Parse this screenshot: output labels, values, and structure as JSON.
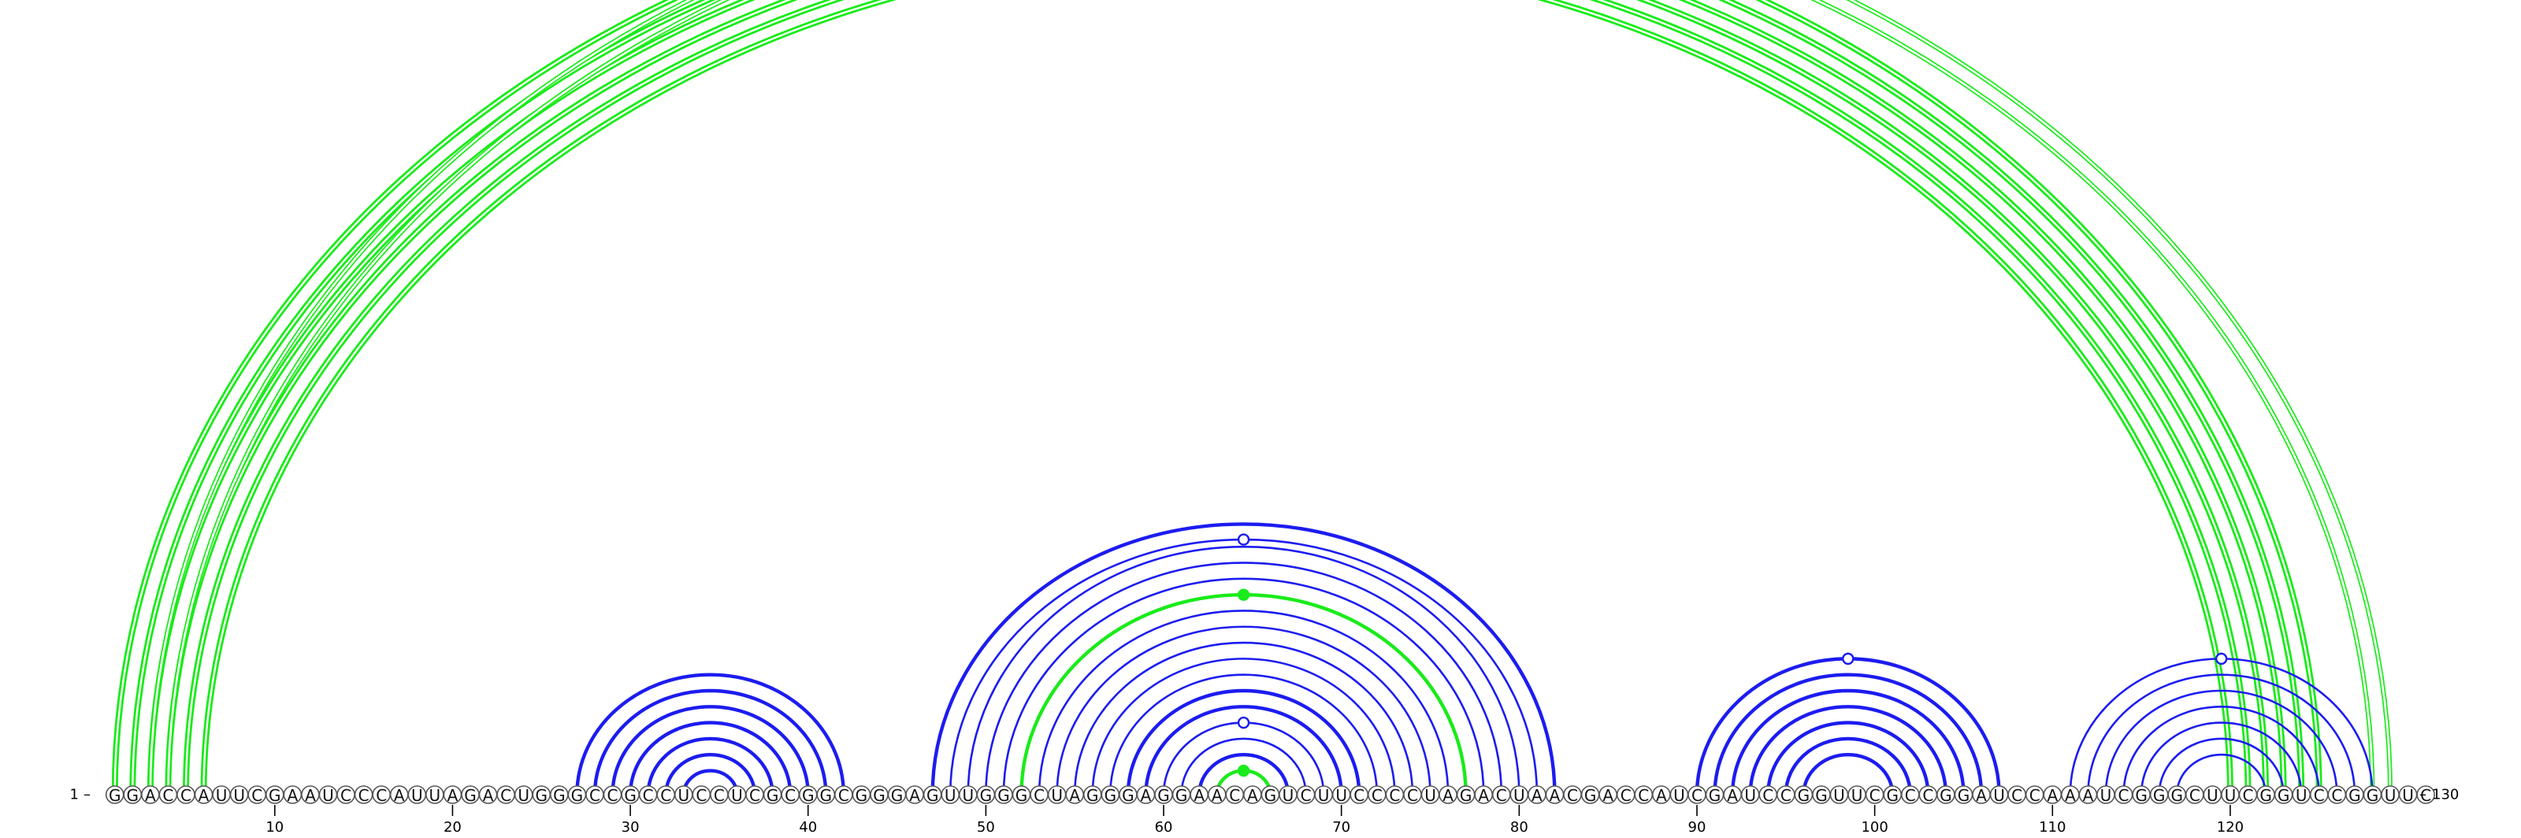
{
  "diagram": {
    "type": "rna-arc-diagram",
    "sequence": "GGACCAUUCGAAUCCCAUUAGACUGGGCCGCCUCCUCGCGGCGGGAGUUGGGCUAGGGAGGAACAGUCUUCCCCUAGACUAACGACCAUCGAUCCGGUUCGCCGGAUCCAAAUCGGGCUUCGGUCCGGUUC",
    "length": 130,
    "start_label": "1",
    "end_label": "130",
    "ticks": [
      "10",
      "20",
      "30",
      "40",
      "50",
      "60",
      "70",
      "80",
      "90",
      "100",
      "110",
      "120"
    ],
    "colors": {
      "blue": "#1c1cf0",
      "green": "#1aeb1a"
    },
    "helices": [
      {
        "color": "green",
        "i": [
          1,
          2,
          3,
          4,
          5,
          6
        ],
        "j": [
          125,
          124,
          123,
          122,
          121,
          120
        ],
        "weight": "bold",
        "double": true
      },
      {
        "color": "green",
        "i": [
          3,
          4
        ],
        "j": [
          129,
          128
        ],
        "weight": "thin",
        "double": true,
        "marker": "open"
      },
      {
        "color": "blue",
        "i": [
          27,
          28,
          29,
          30,
          31,
          32,
          33
        ],
        "j": [
          42,
          41,
          40,
          39,
          38,
          37,
          36
        ],
        "weight": "bold"
      },
      {
        "color": "blue",
        "i": [
          47
        ],
        "j": [
          82
        ],
        "weight": "bold"
      },
      {
        "color": "blue",
        "i": [
          48,
          49,
          50,
          51
        ],
        "j": [
          81,
          80,
          79,
          78
        ],
        "weight": "thin",
        "marker": "open"
      },
      {
        "color": "green",
        "i": [
          52
        ],
        "j": [
          77
        ],
        "weight": "bold",
        "marker": "filled"
      },
      {
        "color": "blue",
        "i": [
          53,
          54,
          55,
          56,
          57
        ],
        "j": [
          76,
          75,
          74,
          73,
          72
        ],
        "weight": "thin"
      },
      {
        "color": "blue",
        "i": [
          58,
          59
        ],
        "j": [
          71,
          70
        ],
        "weight": "bold"
      },
      {
        "color": "blue",
        "i": [
          60,
          61
        ],
        "j": [
          69,
          68
        ],
        "weight": "thin",
        "marker": "open"
      },
      {
        "color": "blue",
        "i": [
          62
        ],
        "j": [
          67
        ],
        "weight": "bold"
      },
      {
        "color": "green",
        "i": [
          63
        ],
        "j": [
          66
        ],
        "weight": "bold",
        "marker": "filled"
      },
      {
        "color": "blue",
        "i": [
          90,
          91,
          92,
          93,
          94,
          95,
          96
        ],
        "j": [
          107,
          106,
          105,
          104,
          103,
          102,
          101
        ],
        "weight": "bold",
        "marker": "open"
      },
      {
        "color": "blue",
        "i": [
          111,
          112,
          113,
          114,
          115,
          116,
          117
        ],
        "j": [
          128,
          127,
          126,
          125,
          124,
          123,
          122
        ],
        "weight": "thin",
        "marker": "open"
      }
    ]
  }
}
